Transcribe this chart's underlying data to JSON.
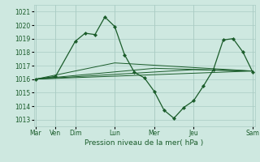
{
  "bg_color": "#cee8e0",
  "grid_color": "#aaccc4",
  "line_color": "#1a5c2a",
  "marker_color": "#1a5c2a",
  "xlabel": "Pression niveau de la mer( hPa )",
  "xlabel_color": "#1a5c2a",
  "tick_color": "#1a5c2a",
  "ylim": [
    1012.5,
    1021.5
  ],
  "yticks": [
    1013,
    1014,
    1015,
    1016,
    1017,
    1018,
    1019,
    1020,
    1021
  ],
  "xlim": [
    -0.1,
    11.1
  ],
  "xtick_labels": [
    "Mar",
    "Ven",
    "Dim",
    "Lun",
    "Mer",
    "Jeu",
    "Sam"
  ],
  "xtick_positions": [
    0,
    1,
    2,
    4,
    6,
    8,
    11
  ],
  "day_lines_x": [
    0,
    1,
    2,
    4,
    6,
    8,
    11
  ],
  "series": [
    {
      "x": [
        0,
        1,
        2,
        2.5,
        3,
        3.5,
        4,
        4.5,
        5,
        5.5,
        6,
        6.5,
        7,
        7.5,
        8,
        8.5,
        9,
        9.5,
        10,
        10.5,
        11
      ],
      "y": [
        1016.0,
        1016.2,
        1018.8,
        1019.4,
        1019.3,
        1020.6,
        1019.9,
        1017.8,
        1016.5,
        1016.1,
        1015.1,
        1013.7,
        1013.1,
        1013.9,
        1014.4,
        1015.5,
        1016.7,
        1018.9,
        1019.0,
        1018.0,
        1016.5
      ],
      "has_markers": true
    },
    {
      "x": [
        0,
        11
      ],
      "y": [
        1016.0,
        1016.6
      ],
      "has_markers": false
    },
    {
      "x": [
        0,
        4,
        11
      ],
      "y": [
        1016.0,
        1017.2,
        1016.6
      ],
      "has_markers": false
    },
    {
      "x": [
        0,
        6,
        11
      ],
      "y": [
        1016.0,
        1016.8,
        1016.6
      ],
      "has_markers": false
    },
    {
      "x": [
        0,
        8,
        11
      ],
      "y": [
        1016.0,
        1016.7,
        1016.6
      ],
      "has_markers": false
    }
  ]
}
